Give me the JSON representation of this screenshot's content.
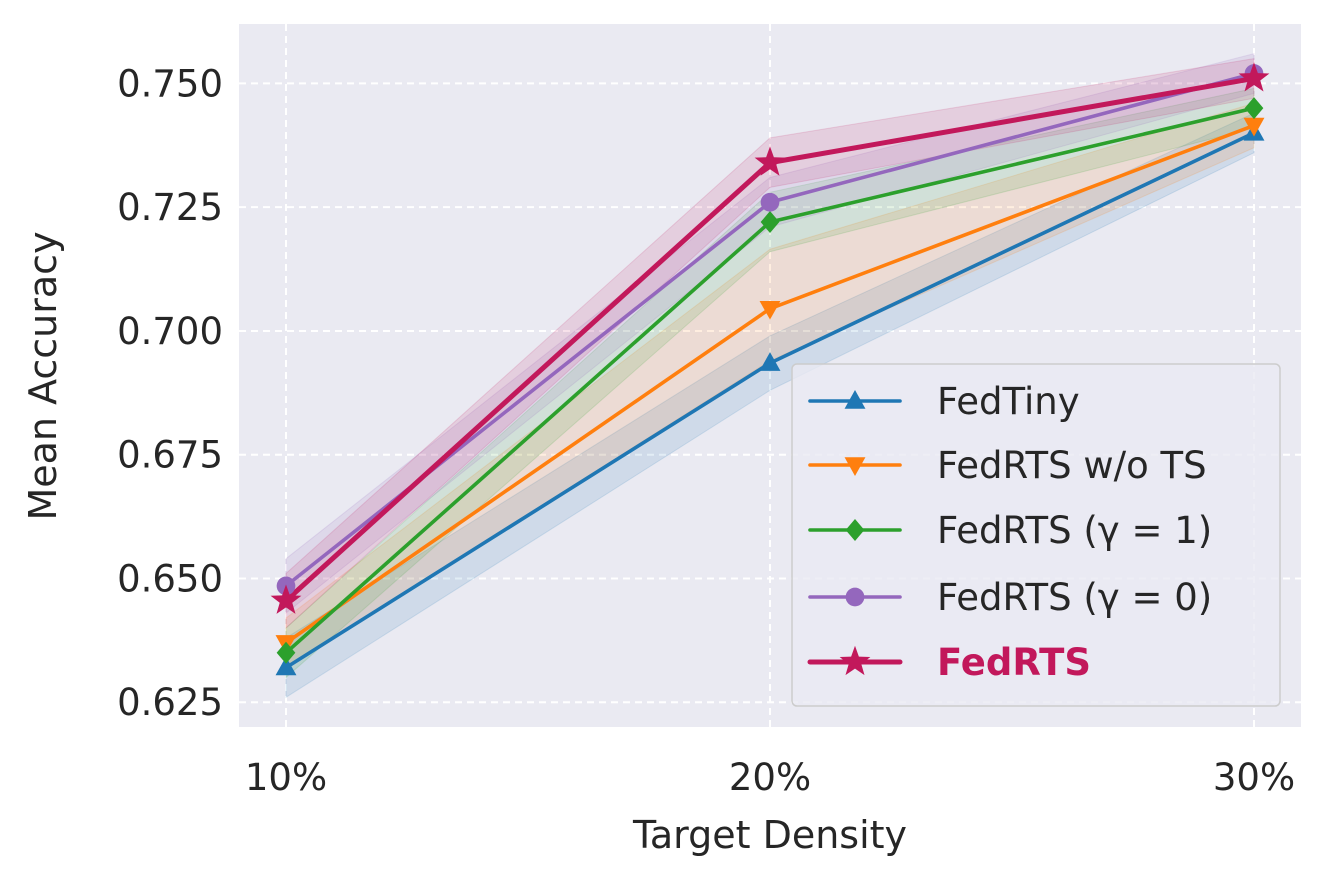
{
  "chart_data": {
    "type": "line",
    "title": "",
    "xlabel": "Target Density",
    "ylabel": "Mean Accuracy",
    "categories": [
      "10%",
      "20%",
      "30%"
    ],
    "ylim": [
      0.62,
      0.762
    ],
    "yticks": [
      0.625,
      0.65,
      0.675,
      0.7,
      0.725,
      0.75
    ],
    "ytick_labels": [
      "0.625",
      "0.650",
      "0.675",
      "0.700",
      "0.725",
      "0.750"
    ],
    "grid": true,
    "legend_position": "lower-right",
    "series": [
      {
        "name": "FedTiny",
        "color": "#1f77b4",
        "marker": "triangle-up",
        "values": [
          0.632,
          0.6935,
          0.74
        ],
        "lower": [
          0.626,
          0.688,
          0.736
        ],
        "upper": [
          0.638,
          0.699,
          0.744
        ],
        "bold": false
      },
      {
        "name": "FedRTS w/o TS",
        "color": "#ff7f0e",
        "marker": "triangle-down",
        "values": [
          0.637,
          0.7045,
          0.7415
        ],
        "lower": [
          0.632,
          0.694,
          0.737
        ],
        "upper": [
          0.642,
          0.7165,
          0.746
        ],
        "bold": false
      },
      {
        "name": "FedRTS (γ = 1)",
        "color": "#2ca02c",
        "marker": "diamond",
        "values": [
          0.635,
          0.722,
          0.745
        ],
        "lower": [
          0.63,
          0.716,
          0.741
        ],
        "upper": [
          0.64,
          0.728,
          0.749
        ],
        "bold": false
      },
      {
        "name": "FedRTS (γ = 0)",
        "color": "#9467bd",
        "marker": "circle",
        "values": [
          0.6485,
          0.726,
          0.752
        ],
        "lower": [
          0.643,
          0.721,
          0.748
        ],
        "upper": [
          0.654,
          0.731,
          0.756
        ],
        "bold": false
      },
      {
        "name": "FedRTS",
        "color": "#c2185b",
        "marker": "star",
        "values": [
          0.6455,
          0.734,
          0.751
        ],
        "lower": [
          0.64,
          0.729,
          0.747
        ],
        "upper": [
          0.651,
          0.739,
          0.755
        ],
        "bold": true
      }
    ]
  }
}
